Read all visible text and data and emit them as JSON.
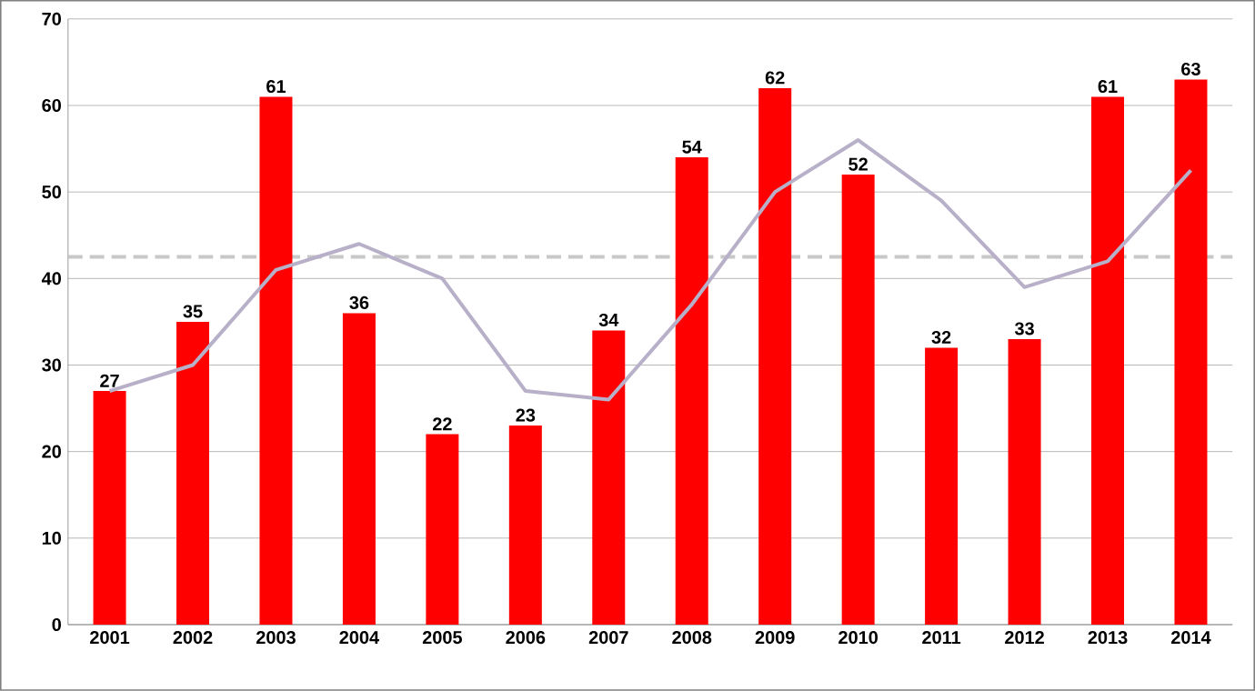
{
  "chart_data": {
    "type": "bar",
    "categories": [
      "2001",
      "2002",
      "2003",
      "2004",
      "2005",
      "2006",
      "2007",
      "2008",
      "2009",
      "2010",
      "2011",
      "2012",
      "2013",
      "2014"
    ],
    "series": [
      {
        "color": "#ff0000",
        "values": [
          27,
          35,
          61,
          36,
          22,
          23,
          34,
          54,
          62,
          52,
          32,
          33,
          61,
          63
        ],
        "value_labels": [
          "27",
          "35",
          "61",
          "36",
          "22",
          "23",
          "34",
          "54",
          "62",
          "52",
          "32",
          "33",
          "61",
          "63"
        ]
      },
      {
        "type": "line",
        "color": "#b8b0c8",
        "values": [
          27,
          30,
          41,
          44,
          40,
          27,
          26,
          37,
          50,
          56,
          49,
          39,
          42,
          52.5
        ]
      }
    ],
    "ylim": [
      0,
      70
    ],
    "yticks": [
      0,
      10,
      20,
      30,
      40,
      50,
      60,
      70
    ],
    "grid": "y",
    "ref_lines": [
      {
        "axis": "y",
        "value": 42.5,
        "color": "#c8c8c8",
        "line_style": "dashed"
      }
    ]
  }
}
